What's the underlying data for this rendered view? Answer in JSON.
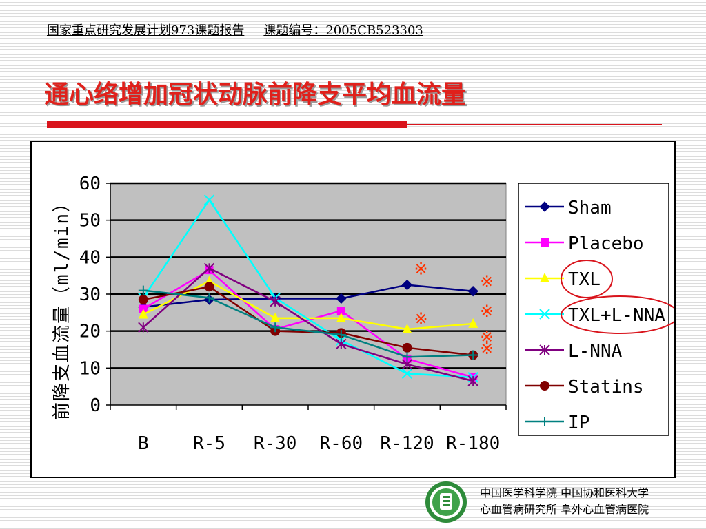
{
  "header": {
    "left": "国家重点研究发展计划973课题报告",
    "right": "课题编号：2005CB523303"
  },
  "title": "通心络增加冠状动脉前降支平均血流量",
  "footer": {
    "line1": "中国医学科学院  中国协和医科大学",
    "line2": "心血管病研究所  阜外心血管病医院"
  },
  "chart_data": {
    "type": "line",
    "ylabel": "前降支血流量（ml/min）",
    "xlabel": "",
    "categories": [
      "B",
      "R-5",
      "R-30",
      "R-60",
      "R-120",
      "R-180"
    ],
    "ylim": [
      0,
      60
    ],
    "yticks": [
      0,
      10,
      20,
      30,
      40,
      50,
      60
    ],
    "grid": true,
    "legend_position": "right",
    "plot_background": "#c0c0c0",
    "series": [
      {
        "name": "Sham",
        "color": "#000080",
        "marker": "diamond",
        "values": [
          26.5,
          28.5,
          28.8,
          28.8,
          32.5,
          30.8
        ]
      },
      {
        "name": "Placebo",
        "color": "#ff00ff",
        "marker": "square",
        "values": [
          26.0,
          36.5,
          20.5,
          25.5,
          12.5,
          7.5
        ]
      },
      {
        "name": "TXL",
        "color": "#ffff00",
        "marker": "triangle",
        "values": [
          24.5,
          33.5,
          23.5,
          23.5,
          20.5,
          22.0
        ]
      },
      {
        "name": "TXL+L-NNA",
        "color": "#00ffff",
        "marker": "x",
        "values": [
          29.0,
          55.5,
          29.0,
          17.5,
          8.5,
          7.5
        ]
      },
      {
        "name": "L-NNA",
        "color": "#800080",
        "marker": "asterisk",
        "values": [
          21.0,
          37.0,
          28.0,
          16.5,
          11.0,
          6.5
        ]
      },
      {
        "name": "Statins",
        "color": "#800000",
        "marker": "circle",
        "values": [
          28.5,
          32.0,
          20.0,
          19.5,
          15.5,
          13.5
        ]
      },
      {
        "name": "IP",
        "color": "#008080",
        "marker": "plus",
        "values": [
          31.0,
          29.0,
          21.0,
          19.0,
          13.0,
          13.5
        ]
      }
    ],
    "annotations": [
      {
        "text": "※",
        "x": "R-120",
        "y": 37.0,
        "color": "#ff3300"
      },
      {
        "text": "※",
        "x": "R-180",
        "y": 33.5,
        "color": "#ff3300"
      },
      {
        "text": "※",
        "x": "R-120",
        "y": 23.5,
        "color": "#ff3300"
      },
      {
        "text": "※",
        "x": "R-180",
        "y": 25.5,
        "color": "#ff3300"
      },
      {
        "text": "※",
        "x": "R-180",
        "y": 18.5,
        "color": "#ff3300"
      },
      {
        "text": "※",
        "x": "R-180",
        "y": 15.5,
        "color": "#ff3300"
      }
    ],
    "highlight_circles": [
      "TXL",
      "TXL+L-NNA"
    ],
    "highlight_color": "#d9141c"
  }
}
